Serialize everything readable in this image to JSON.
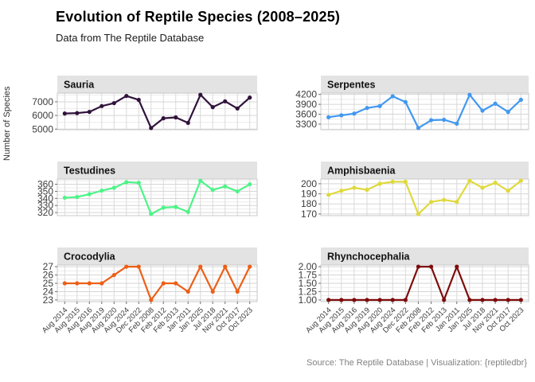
{
  "header": {
    "title": "Evolution of Reptile Species (2008–2025)",
    "subtitle": "Data from The Reptile Database"
  },
  "caption": "Source: The Reptile Database | Visualization: {reptiledbr}",
  "chart_data": {
    "type": "line",
    "ylabel": "Number of Species",
    "grid": true,
    "legend": "none",
    "x_label_rotation": 45,
    "categories": [
      "Aug 2014",
      "Aug 2015",
      "Aug 2016",
      "Aug 2019",
      "Aug 2020",
      "Aug 2024",
      "Dec 2022",
      "Feb 2008",
      "Feb 2012",
      "Feb 2013",
      "Jan 2011",
      "Jan 2025",
      "Jul 2018",
      "Nov 2021",
      "Oct 2017",
      "Oct 2023"
    ],
    "facets": [
      {
        "title": "Sauria",
        "color": "#30123B",
        "ticks": [
          5000,
          6000,
          7000
        ],
        "tick_labels": [
          "5000",
          "6000",
          "7000"
        ],
        "values": [
          6145,
          6175,
          6263,
          6687,
          6905,
          7429,
          7144,
          5079,
          5796,
          5859,
          5461,
          7516,
          6610,
          7037,
          6512,
          7310
        ]
      },
      {
        "title": "Serpentes",
        "color": "#4298F0",
        "ticks": [
          3300,
          3600,
          3900,
          4200
        ],
        "tick_labels": [
          "3300",
          "3600",
          "3900",
          "4200"
        ],
        "values": [
          3511,
          3567,
          3619,
          3789,
          3848,
          4145,
          3971,
          3181,
          3420,
          3432,
          3315,
          4190,
          3709,
          3921,
          3671,
          4038
        ]
      },
      {
        "title": "Testudines",
        "color": "#4DF488",
        "ticks": [
          320,
          330,
          340,
          350,
          360
        ],
        "tick_labels": [
          "320",
          "330",
          "340",
          "350",
          "360"
        ],
        "values": [
          341,
          342,
          346,
          351,
          355,
          363,
          362,
          318,
          327,
          328,
          321,
          365,
          352,
          357,
          350,
          360
        ]
      },
      {
        "title": "Amphisbaenia",
        "color": "#DFD93C",
        "ticks": [
          170,
          180,
          190,
          200
        ],
        "tick_labels": [
          "170",
          "180",
          "190",
          "200"
        ],
        "values": [
          189,
          193,
          196,
          194,
          200,
          202,
          202,
          170,
          182,
          184,
          182,
          203,
          196,
          201,
          193,
          203
        ]
      },
      {
        "title": "Crocodylia",
        "color": "#ED5F16",
        "ticks": [
          23,
          24,
          25,
          26,
          27
        ],
        "tick_labels": [
          "23",
          "24",
          "25",
          "26",
          "27"
        ],
        "values": [
          25,
          25,
          25,
          25,
          26,
          27,
          27,
          23,
          25,
          25,
          24,
          27,
          24,
          27,
          24,
          27
        ]
      },
      {
        "title": "Rhynchocephalia",
        "color": "#7E0B0B",
        "ticks": [
          1.0,
          1.25,
          1.5,
          1.75,
          2.0
        ],
        "tick_labels": [
          "1.00",
          "1.25",
          "1.50",
          "1.75",
          "2.00"
        ],
        "values": [
          1,
          1,
          1,
          1,
          1,
          1,
          1,
          2,
          2,
          1,
          2,
          1,
          1,
          1,
          1,
          1
        ]
      }
    ]
  }
}
